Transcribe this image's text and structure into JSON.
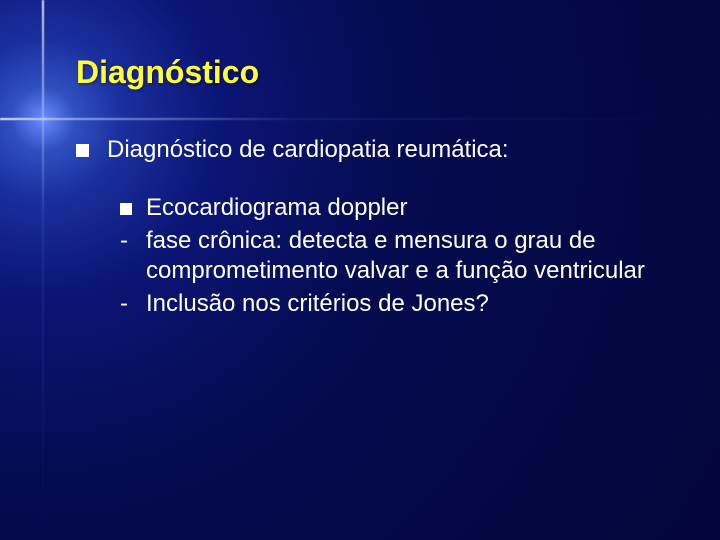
{
  "slide": {
    "title": "Diagnóstico",
    "title_color": "#ffff33",
    "title_fontsize": 32,
    "body_fontsize": 24,
    "text_color": "#ffffff",
    "background_gradient": {
      "center": "#6a8cff",
      "mid": "#0b1575",
      "edge": "#02063a"
    },
    "main_bullet": {
      "marker": "square",
      "text": "Diagnóstico de cardiopatia reumática:"
    },
    "sub_items": [
      {
        "marker": "square",
        "text": "Ecocardiograma doppler"
      },
      {
        "marker": "dash",
        "text": "fase crônica: detecta e mensura o grau de comprometimento valvar e a função ventricular"
      },
      {
        "marker": "dash",
        "text": "Inclusão nos critérios de Jones?"
      }
    ]
  }
}
